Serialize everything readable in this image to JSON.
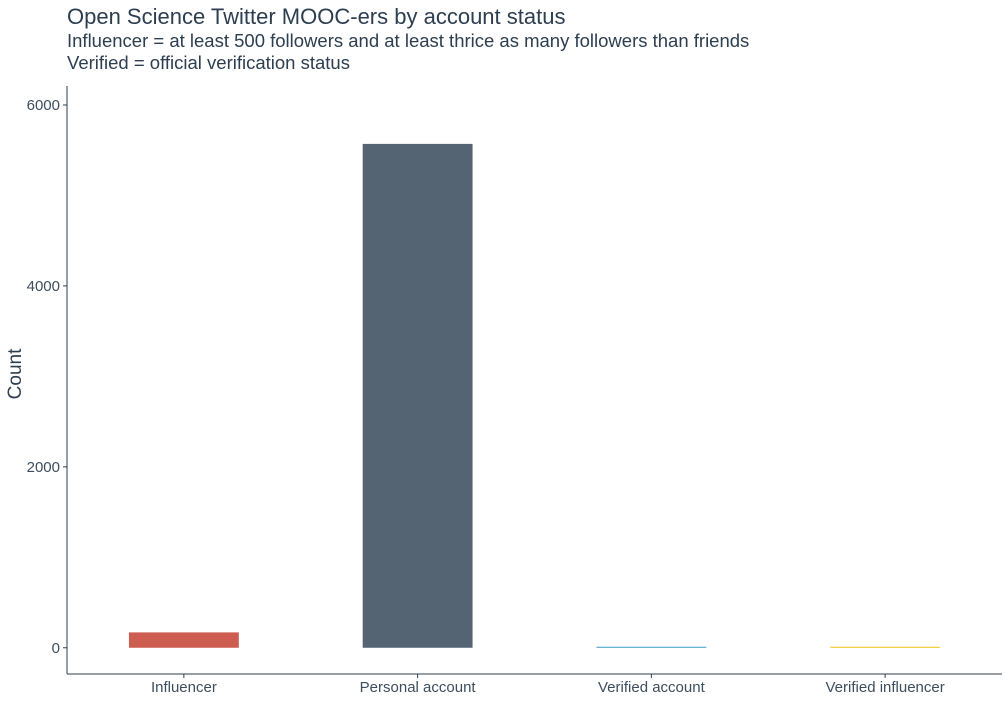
{
  "chart_data": {
    "type": "bar",
    "title": "Open Science Twitter MOOC-ers by account status",
    "subtitle_lines": [
      "Influencer = at least 500 followers and at least thrice as many followers than friends",
      "Verified = official verification status"
    ],
    "xlabel": "",
    "ylabel": "Count",
    "categories": [
      "Influencer",
      "Personal account",
      "Verified account",
      "Verified influencer"
    ],
    "values": [
      170,
      5570,
      8,
      5
    ],
    "colors": [
      "#cd5c51",
      "#556472",
      "#3a9fc4",
      "#f1c40f"
    ],
    "ylim": [
      -290,
      6210
    ],
    "yticks": [
      0,
      2000,
      4000,
      6000
    ],
    "grid": false,
    "legend": "none"
  }
}
